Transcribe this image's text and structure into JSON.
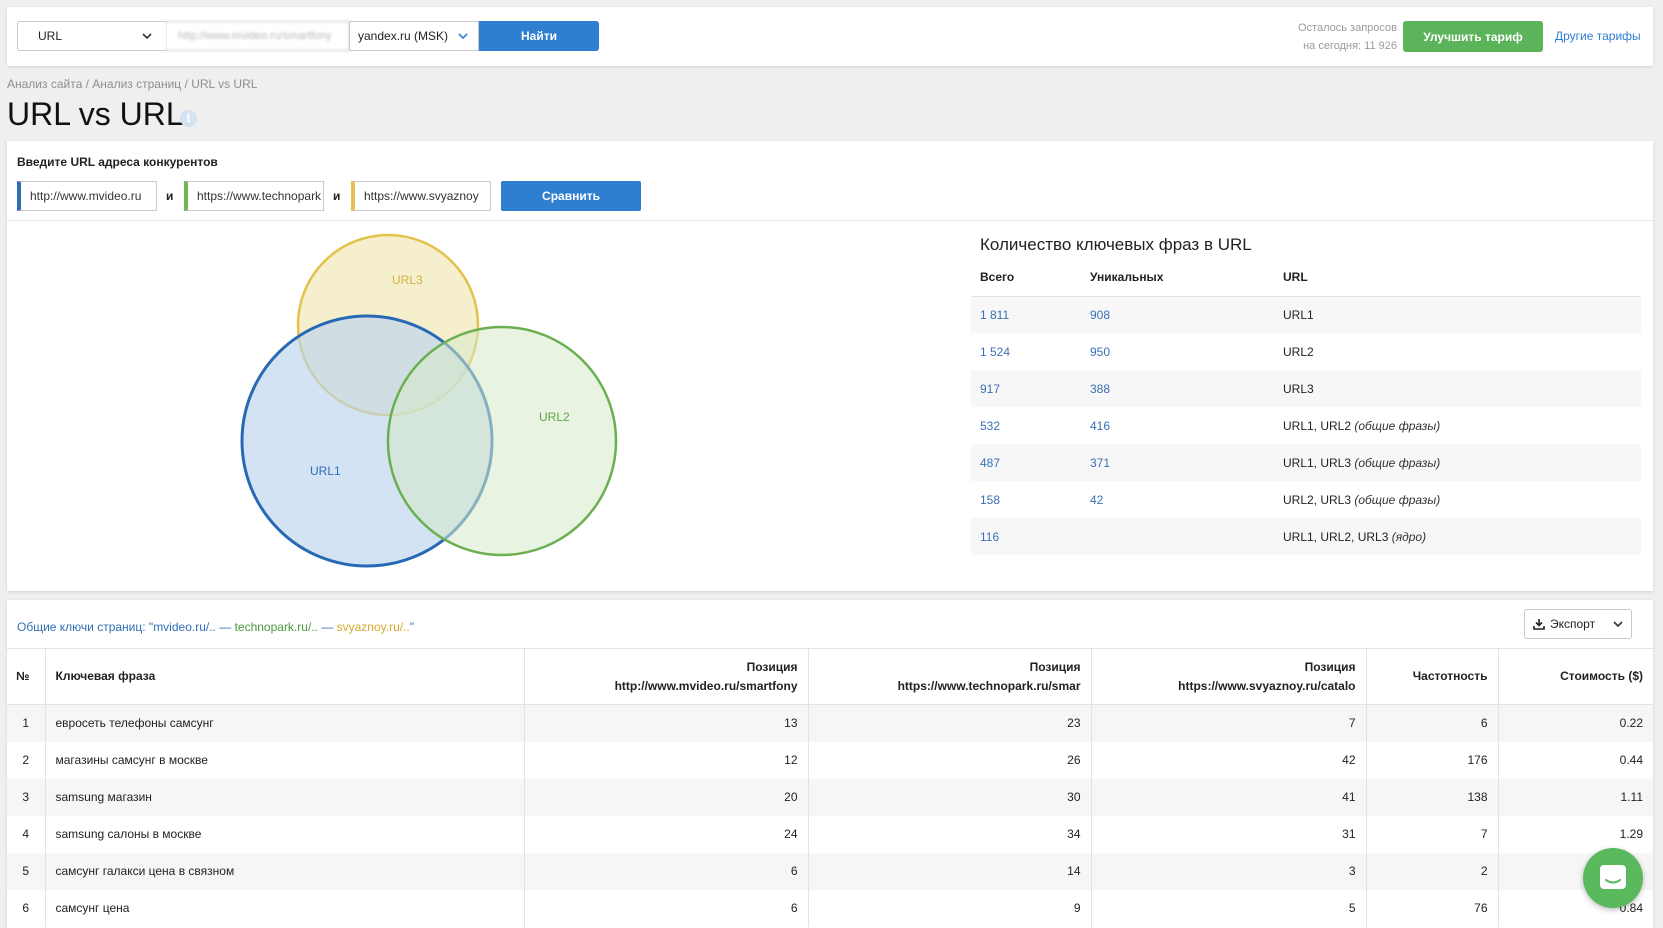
{
  "topbar": {
    "search_type": "URL",
    "query_placeholder": "http://www.mvideo.ru/smartfony",
    "database": "yandex.ru (MSK)",
    "find_label": "Найти",
    "quota_line1": "Осталось запросов",
    "quota_line2": "на сегодня: 11 926",
    "upgrade_label": "Улучшить тариф",
    "other_tariffs_label": "Другие тарифы"
  },
  "breadcrumb": {
    "items": [
      "Анализ сайта",
      "Анализ страниц",
      "URL vs URL"
    ],
    "separator": " / "
  },
  "page": {
    "title": "URL vs URL",
    "info_glyph": "i"
  },
  "compare": {
    "label": "Введите URL адреса конкурентов",
    "urls": [
      "http://www.mvideo.ru",
      "https://www.technopark",
      "https://www.svyaznoy"
    ],
    "and_label": "и",
    "button_label": "Сравнить",
    "colors": [
      "#2f6fb5",
      "#6cb856",
      "#e6c054"
    ]
  },
  "venn": {
    "labels": [
      "URL1",
      "URL2",
      "URL3"
    ],
    "stroke_colors": [
      "#2769b5",
      "#6aaf50",
      "#e2c24a"
    ],
    "fill_colors": [
      "#bcd4ee",
      "#d6eac9",
      "#f5ecc6"
    ],
    "text_colors": [
      "#2f6fb5",
      "#5ea64a",
      "#d6b23e"
    ]
  },
  "keyphrases": {
    "title": "Количество ключевых фраз в URL",
    "columns": [
      "Всего",
      "Уникальных",
      "URL"
    ],
    "rows": [
      {
        "total": "1 811",
        "unique": "908",
        "url": "URL1",
        "note": ""
      },
      {
        "total": "1 524",
        "unique": "950",
        "url": "URL2",
        "note": ""
      },
      {
        "total": "917",
        "unique": "388",
        "url": "URL3",
        "note": ""
      },
      {
        "total": "532",
        "unique": "416",
        "url": "URL1, URL2",
        "note": "(общие фразы)"
      },
      {
        "total": "487",
        "unique": "371",
        "url": "URL1, URL3",
        "note": "(общие фразы)"
      },
      {
        "total": "158",
        "unique": "42",
        "url": "URL2, URL3",
        "note": "(общие фразы)"
      },
      {
        "total": "116",
        "unique": "",
        "url": "URL1, URL2, URL3",
        "note": "(ядро)"
      }
    ]
  },
  "common": {
    "prefix": "Общие ключи страниц: \"",
    "site1": "mvideo.ru/..",
    "sep1": " — ",
    "site2": "technopark.ru/..",
    "sep2": " — ",
    "site3": "svyaznoy.ru/..",
    "suffix": "\"",
    "export_label": "Экспорт"
  },
  "table": {
    "headers": {
      "num": "№",
      "keyword": "Ключевая фраза",
      "pos_label": "Позиция",
      "pos1_url": "http://www.mvideo.ru/smartfony",
      "pos2_url": "https://www.technopark.ru/smar",
      "pos3_url": "https://www.svyaznoy.ru/catalo",
      "freq": "Частотность",
      "cost": "Стоимость ($)"
    },
    "rows": [
      {
        "n": "1",
        "kw": "евросеть телефоны самсунг",
        "p1": "13",
        "p2": "23",
        "p3": "7",
        "freq": "6",
        "cost": "0.22"
      },
      {
        "n": "2",
        "kw": "магазины самсунг в москве",
        "p1": "12",
        "p2": "26",
        "p3": "42",
        "freq": "176",
        "cost": "0.44"
      },
      {
        "n": "3",
        "kw": "samsung магазин",
        "p1": "20",
        "p2": "30",
        "p3": "41",
        "freq": "138",
        "cost": "1.11"
      },
      {
        "n": "4",
        "kw": "samsung салоны в москве",
        "p1": "24",
        "p2": "34",
        "p3": "31",
        "freq": "7",
        "cost": "1.29"
      },
      {
        "n": "5",
        "kw": "самсунг галакси цена в связном",
        "p1": "6",
        "p2": "14",
        "p3": "3",
        "freq": "2",
        "cost": ""
      },
      {
        "n": "6",
        "kw": "самсунг цена",
        "p1": "6",
        "p2": "9",
        "p3": "5",
        "freq": "76",
        "cost": "0.84"
      }
    ]
  }
}
